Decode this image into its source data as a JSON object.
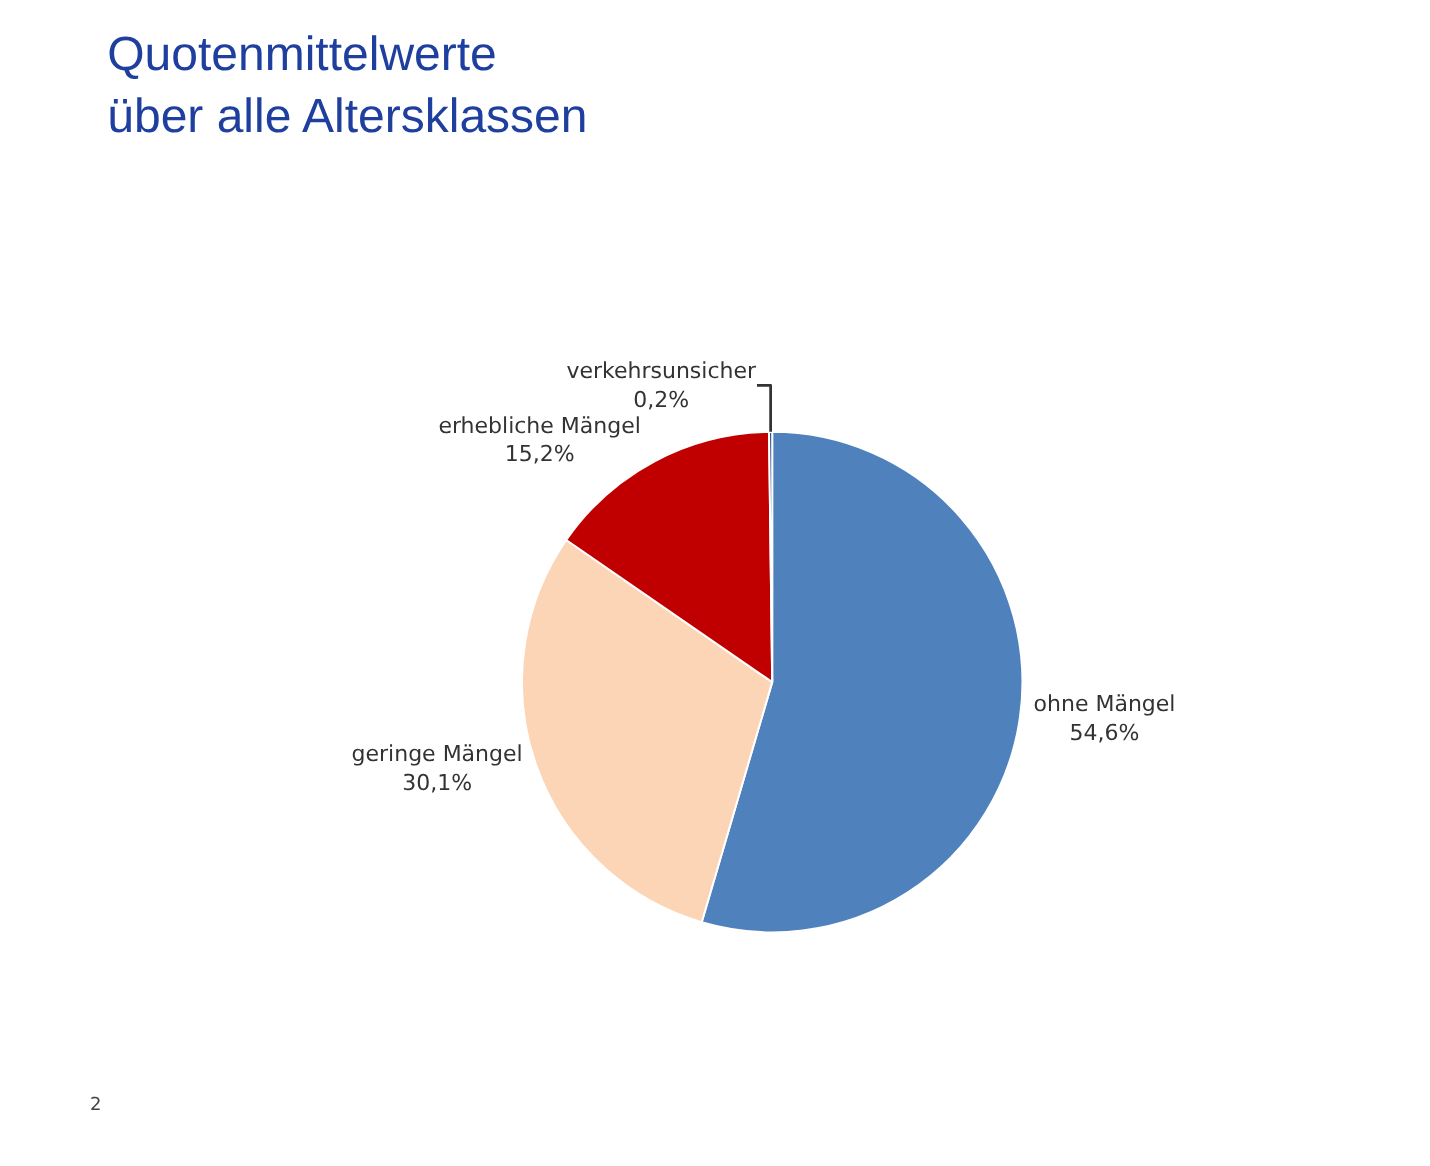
{
  "chart_data": {
    "type": "pie",
    "title": "Quotenmittelwerte\nüber alle Altersklassen",
    "categories": [
      "ohne Mängel",
      "geringe Mängel",
      "erhebliche Mängel",
      "verkehrsunsicher"
    ],
    "values": [
      54.6,
      30.1,
      15.2,
      0.2
    ],
    "value_labels": [
      "54,6%",
      "30,1%",
      "15,2%",
      "0,2%"
    ],
    "colors": [
      "#4f81bd",
      "#fbd5b5",
      "#c00000",
      "#1f497d"
    ],
    "legend": false,
    "annotations": [
      "2"
    ]
  }
}
